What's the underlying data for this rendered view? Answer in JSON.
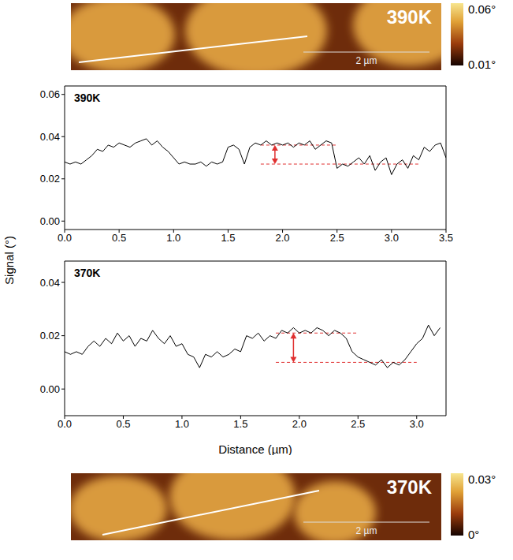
{
  "figure": {
    "xlabel": "Distance (µm)",
    "ylabel": "Signal (°)"
  },
  "chart_data": [
    {
      "type": "line",
      "title": "390K",
      "x": [
        0,
        0.05,
        0.1,
        0.15,
        0.2,
        0.25,
        0.3,
        0.35,
        0.4,
        0.45,
        0.5,
        0.55,
        0.6,
        0.65,
        0.7,
        0.75,
        0.8,
        0.85,
        0.9,
        0.95,
        1.0,
        1.05,
        1.1,
        1.15,
        1.2,
        1.25,
        1.3,
        1.35,
        1.4,
        1.45,
        1.5,
        1.55,
        1.6,
        1.65,
        1.7,
        1.75,
        1.8,
        1.85,
        1.9,
        1.95,
        2.0,
        2.05,
        2.1,
        2.15,
        2.2,
        2.25,
        2.3,
        2.35,
        2.4,
        2.45,
        2.5,
        2.55,
        2.6,
        2.65,
        2.7,
        2.75,
        2.8,
        2.85,
        2.9,
        2.95,
        3.0,
        3.05,
        3.1,
        3.15,
        3.2,
        3.25,
        3.3,
        3.35,
        3.4,
        3.45,
        3.5
      ],
      "values": [
        0.028,
        0.027,
        0.028,
        0.027,
        0.029,
        0.031,
        0.034,
        0.033,
        0.036,
        0.035,
        0.037,
        0.036,
        0.035,
        0.037,
        0.038,
        0.039,
        0.036,
        0.038,
        0.035,
        0.033,
        0.03,
        0.027,
        0.028,
        0.027,
        0.027,
        0.028,
        0.026,
        0.028,
        0.027,
        0.028,
        0.035,
        0.036,
        0.034,
        0.027,
        0.035,
        0.037,
        0.036,
        0.038,
        0.036,
        0.037,
        0.036,
        0.037,
        0.035,
        0.037,
        0.036,
        0.038,
        0.034,
        0.036,
        0.038,
        0.037,
        0.025,
        0.027,
        0.026,
        0.028,
        0.03,
        0.027,
        0.031,
        0.024,
        0.028,
        0.03,
        0.022,
        0.027,
        0.029,
        0.025,
        0.031,
        0.029,
        0.035,
        0.033,
        0.036,
        0.037,
        0.03
      ],
      "color": "#000000",
      "xlim": [
        0,
        3.5
      ],
      "xticks": [
        {
          "value": 0,
          "label": "0.0"
        },
        {
          "value": 0.5,
          "label": "0.5"
        },
        {
          "value": 1,
          "label": "1.0"
        },
        {
          "value": 1.5,
          "label": "1.5"
        },
        {
          "value": 2,
          "label": "2.0"
        },
        {
          "value": 2.5,
          "label": "2.5"
        },
        {
          "value": 3,
          "label": "3.0"
        },
        {
          "value": 3.5,
          "label": "3.5"
        }
      ],
      "ylim": [
        -0.004,
        0.064
      ],
      "yticks": [
        {
          "value": 0,
          "label": "0.00"
        },
        {
          "value": 0.02,
          "label": "0.02"
        },
        {
          "value": 0.04,
          "label": "0.04"
        },
        {
          "value": 0.06,
          "label": "0.06"
        }
      ],
      "levels": [
        {
          "y": 0.036,
          "x": [
            1.8,
            2.5
          ]
        },
        {
          "y": 0.027,
          "x": [
            1.8,
            3.25
          ]
        }
      ],
      "arrow_x": 1.93
    },
    {
      "type": "line",
      "title": "370K",
      "x": [
        0,
        0.05,
        0.1,
        0.15,
        0.2,
        0.25,
        0.3,
        0.35,
        0.4,
        0.45,
        0.5,
        0.55,
        0.6,
        0.65,
        0.7,
        0.75,
        0.8,
        0.85,
        0.9,
        0.95,
        1.0,
        1.05,
        1.1,
        1.15,
        1.2,
        1.25,
        1.3,
        1.35,
        1.4,
        1.45,
        1.5,
        1.55,
        1.6,
        1.65,
        1.7,
        1.75,
        1.8,
        1.85,
        1.9,
        1.95,
        2.0,
        2.05,
        2.1,
        2.15,
        2.2,
        2.25,
        2.3,
        2.35,
        2.4,
        2.45,
        2.5,
        2.55,
        2.6,
        2.65,
        2.7,
        2.75,
        2.8,
        2.85,
        2.9,
        2.95,
        3.0,
        3.05,
        3.1,
        3.15,
        3.2
      ],
      "values": [
        0.014,
        0.013,
        0.014,
        0.013,
        0.016,
        0.018,
        0.016,
        0.019,
        0.017,
        0.021,
        0.018,
        0.02,
        0.016,
        0.019,
        0.018,
        0.022,
        0.019,
        0.017,
        0.02,
        0.016,
        0.017,
        0.013,
        0.012,
        0.008,
        0.013,
        0.012,
        0.014,
        0.012,
        0.013,
        0.015,
        0.014,
        0.02,
        0.019,
        0.021,
        0.018,
        0.02,
        0.019,
        0.022,
        0.021,
        0.023,
        0.021,
        0.022,
        0.021,
        0.023,
        0.022,
        0.02,
        0.022,
        0.021,
        0.019,
        0.014,
        0.012,
        0.011,
        0.01,
        0.009,
        0.011,
        0.008,
        0.01,
        0.009,
        0.011,
        0.014,
        0.017,
        0.019,
        0.024,
        0.02,
        0.023
      ],
      "color": "#000000",
      "xlim": [
        0,
        3.25
      ],
      "xticks": [
        {
          "value": 0,
          "label": "0.0"
        },
        {
          "value": 0.5,
          "label": "0.5"
        },
        {
          "value": 1,
          "label": "1.0"
        },
        {
          "value": 1.5,
          "label": "1.5"
        },
        {
          "value": 2,
          "label": "2.0"
        },
        {
          "value": 2.5,
          "label": "2.5"
        },
        {
          "value": 3,
          "label": "3.0"
        }
      ],
      "ylim": [
        -0.01,
        0.048
      ],
      "yticks": [
        {
          "value": 0,
          "label": "0.00"
        },
        {
          "value": 0.02,
          "label": "0.02"
        },
        {
          "value": 0.04,
          "label": "0.04"
        }
      ],
      "levels": [
        {
          "y": 0.021,
          "x": [
            1.8,
            2.5
          ]
        },
        {
          "y": 0.01,
          "x": [
            1.8,
            3.0
          ]
        }
      ],
      "arrow_x": 1.95
    }
  ],
  "images": [
    {
      "label": "390K",
      "scale_bar": "2 µm",
      "colorbar": {
        "range": [
          0.01,
          0.06
        ],
        "ticks": [
          {
            "value": 0.06,
            "label": "0.06°"
          },
          {
            "value": 0.01,
            "label": "0.01°"
          }
        ]
      }
    },
    {
      "label": "370K",
      "scale_bar": "2 µm",
      "colorbar": {
        "range": [
          0,
          0.03
        ],
        "ticks": [
          {
            "value": 0.03,
            "label": "0.03°"
          },
          {
            "value": 0,
            "label": "0°"
          }
        ]
      }
    }
  ]
}
